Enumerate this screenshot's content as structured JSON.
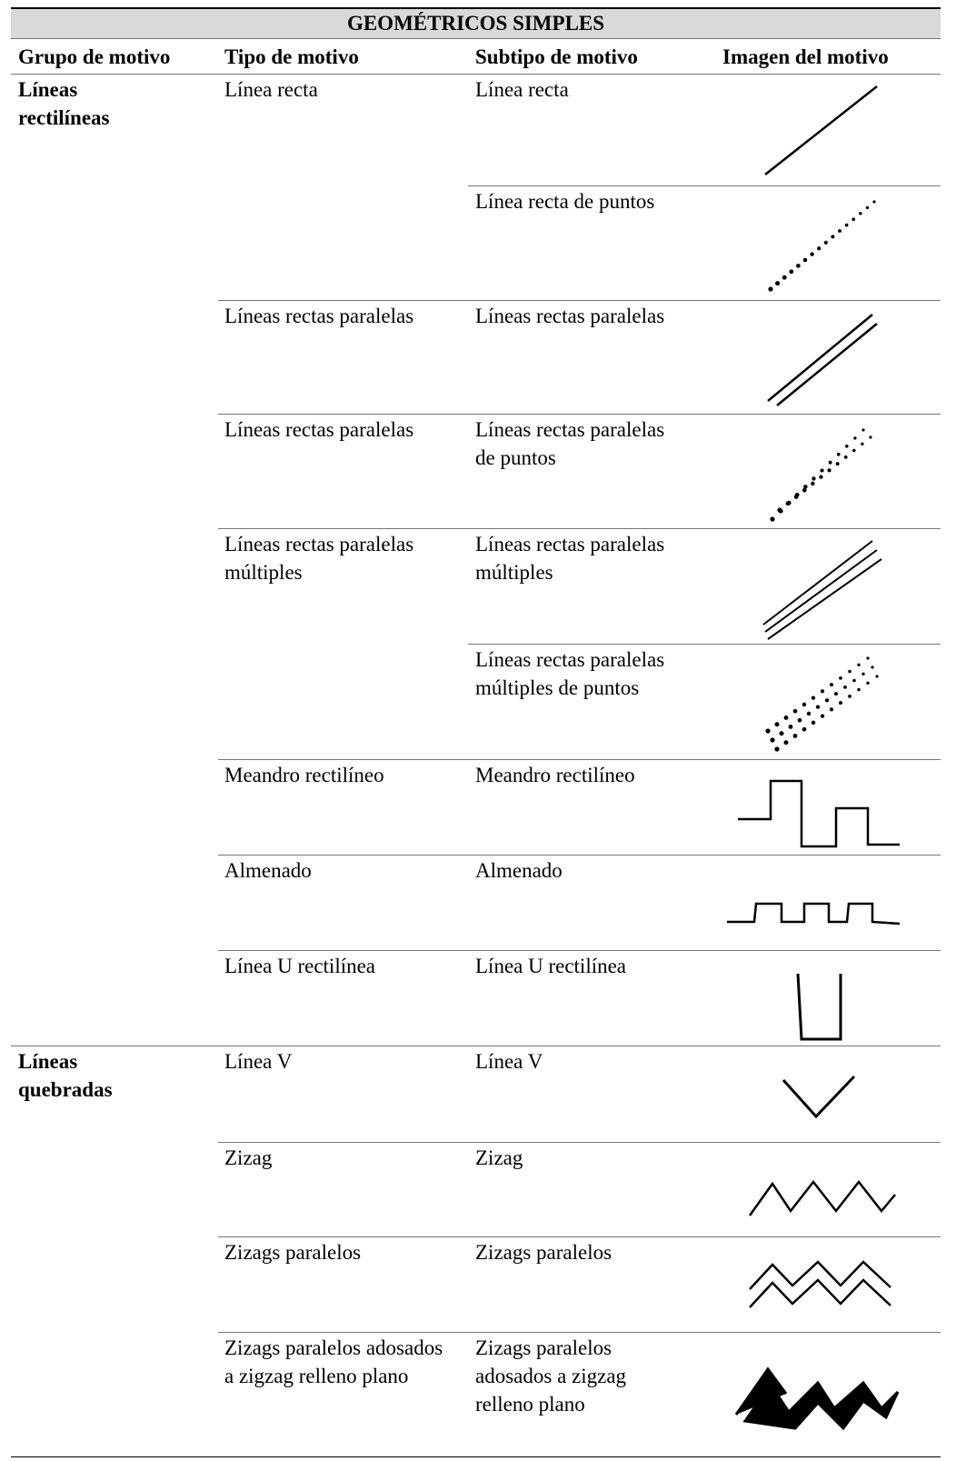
{
  "header": {
    "title": "GEOMÉTRICOS SIMPLES",
    "columns": [
      "Grupo de motivo",
      "Tipo de motivo",
      "Subtipo de motivo",
      "Imagen del motivo"
    ]
  },
  "groups": [
    {
      "label": "Líneas rectilíneas",
      "rows": [
        {
          "tipo": "Línea recta",
          "subtipo": "Línea recta"
        },
        {
          "subtipo": "Línea recta de puntos"
        },
        {
          "tipo": "Líneas rectas paralelas",
          "subtipo": "Líneas rectas paralelas"
        },
        {
          "tipo": "Líneas rectas paralelas",
          "subtipo": "Líneas rectas paralelas de puntos"
        },
        {
          "tipo": "Líneas rectas paralelas múltiples",
          "subtipo": "Líneas rectas paralelas múltiples"
        },
        {
          "subtipo": "Líneas rectas paralelas múltiples de puntos"
        },
        {
          "tipo": "Meandro rectilíneo",
          "subtipo": "Meandro rectilíneo"
        },
        {
          "tipo": "Almenado",
          "subtipo": "Almenado"
        },
        {
          "tipo": "Línea U rectilínea",
          "subtipo": "Línea U rectilínea"
        }
      ]
    },
    {
      "label": "Líneas quebradas",
      "rows": [
        {
          "tipo": "Línea V",
          "subtipo": "Línea V"
        },
        {
          "tipo": "Zizag",
          "subtipo": "Zizag"
        },
        {
          "tipo": "Zizags paralelos",
          "subtipo": "Zizags paralelos"
        },
        {
          "tipo": "Zizags paralelos adosados a zigzag relleno plano",
          "subtipo": "Zizags paralelos adosados a zigzag relleno plano"
        }
      ]
    }
  ]
}
